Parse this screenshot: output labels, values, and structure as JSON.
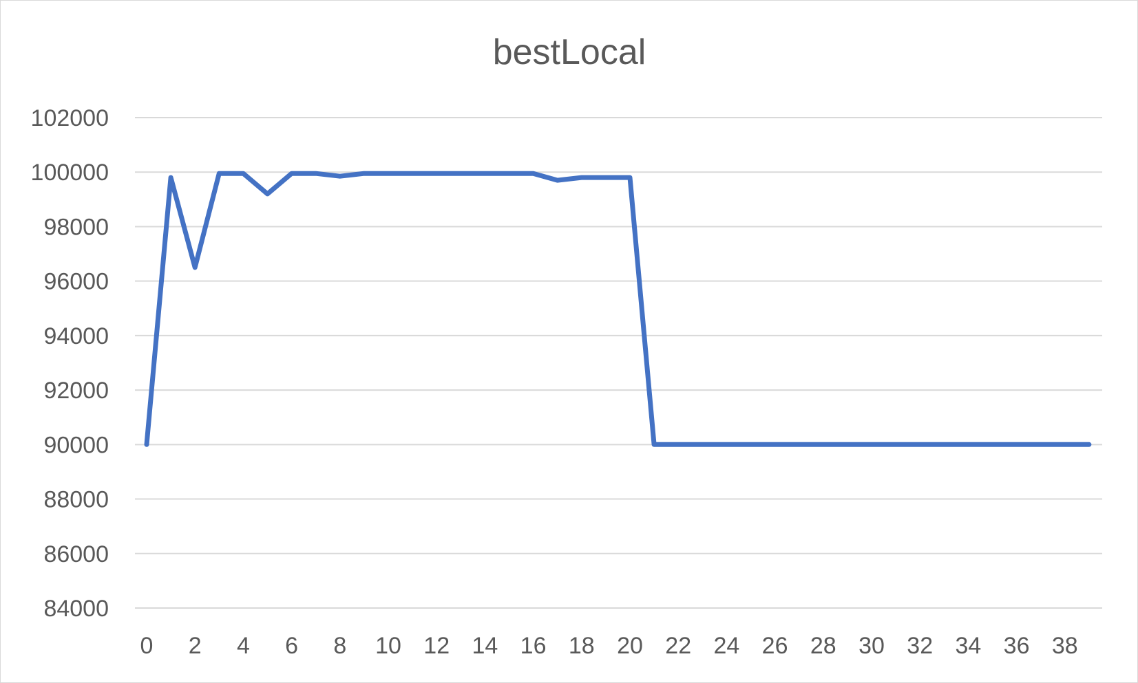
{
  "chart_data": {
    "type": "line",
    "title": "bestLocal",
    "xlabel": "",
    "ylabel": "",
    "x": [
      0,
      1,
      2,
      3,
      4,
      5,
      6,
      7,
      8,
      9,
      10,
      11,
      12,
      13,
      14,
      15,
      16,
      17,
      18,
      19,
      20,
      21,
      22,
      23,
      24,
      25,
      26,
      27,
      28,
      29,
      30,
      31,
      32,
      33,
      34,
      35,
      36,
      37,
      38,
      39
    ],
    "x_tick_labels": [
      "0",
      "2",
      "4",
      "6",
      "8",
      "10",
      "12",
      "14",
      "16",
      "18",
      "20",
      "22",
      "24",
      "26",
      "28",
      "30",
      "32",
      "34",
      "36",
      "38"
    ],
    "y_tick_labels": [
      "102000",
      "100000",
      "98000",
      "96000",
      "94000",
      "92000",
      "90000",
      "88000",
      "86000",
      "84000"
    ],
    "ylim": [
      84000,
      102000
    ],
    "y_tick_step": 2000,
    "grid": true,
    "legend": "none",
    "series": [
      {
        "values": [
          90000,
          99800,
          96500,
          99950,
          99950,
          99200,
          99950,
          99950,
          99850,
          99950,
          99950,
          99950,
          99950,
          99950,
          99950,
          99950,
          99950,
          99700,
          99800,
          99800,
          99800,
          90000,
          90000,
          90000,
          90000,
          90000,
          90000,
          90000,
          90000,
          90000,
          90000,
          90000,
          90000,
          90000,
          90000,
          90000,
          90000,
          90000,
          90000,
          90000
        ],
        "color": "#4472c4"
      }
    ]
  }
}
